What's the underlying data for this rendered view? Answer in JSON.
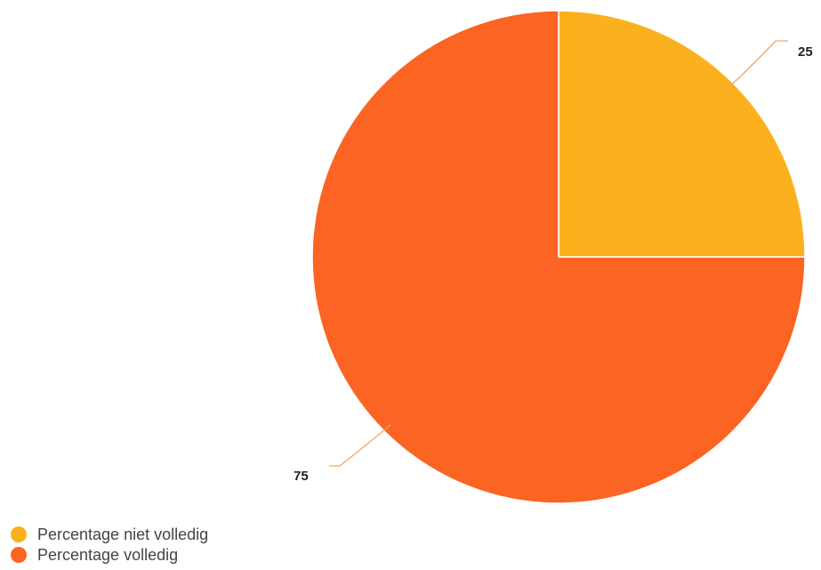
{
  "chart_data": {
    "type": "pie",
    "title": "",
    "slices": [
      {
        "label": "Percentage niet volledig",
        "value": 25,
        "color": "#FBB11E"
      },
      {
        "label": "Percentage volledig",
        "value": 75,
        "color": "#FB6422"
      }
    ],
    "data_labels": [
      "25",
      "75"
    ],
    "legend_position": "bottom-left",
    "leader_line_color": "#F2A66A"
  }
}
